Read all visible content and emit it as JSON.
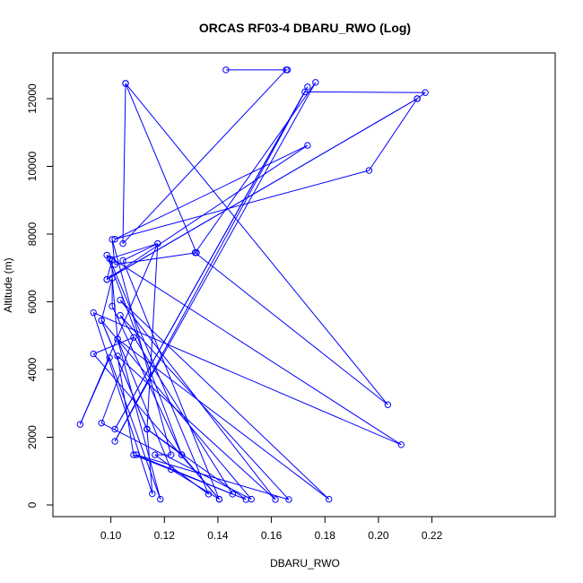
{
  "chart_data": {
    "type": "line",
    "title": "ORCAS RF03-4 DBARU_RWO (Log)",
    "xlabel": "DBARU_RWO",
    "ylabel": "Altitude (m)",
    "xlim": [
      0.085,
      0.22
    ],
    "ylim": [
      0,
      12900
    ],
    "x_ticks": [
      0.1,
      0.12,
      0.14,
      0.16,
      0.18,
      0.2,
      0.22
    ],
    "x_tick_labels": [
      "0.10",
      "0.12",
      "0.14",
      "0.16",
      "0.18",
      "0.20",
      "0.22"
    ],
    "y_ticks": [
      0,
      2000,
      4000,
      6000,
      8000,
      10000,
      12000
    ],
    "y_tick_labels": [
      "0",
      "2000",
      "4000",
      "6000",
      "8000",
      "10000",
      "12000"
    ],
    "grid": false,
    "legend": "none",
    "series": [
      {
        "color": "#0000ff",
        "marker": "open-circle",
        "points": [
          [
            0.143,
            12850
          ],
          [
            0.166,
            12850
          ],
          [
            0.1655,
            12850
          ],
          [
            0.1045,
            7720
          ],
          [
            0.1055,
            12450
          ],
          [
            0.132,
            7450
          ],
          [
            0.1015,
            7100
          ],
          [
            0.1005,
            7840
          ],
          [
            0.1225,
            1480
          ],
          [
            0.1165,
            1480
          ],
          [
            0.1365,
            320
          ],
          [
            0.0995,
            7270
          ],
          [
            0.1175,
            7720
          ],
          [
            0.1045,
            7220
          ],
          [
            0.1405,
            170
          ],
          [
            0.1225,
            1050
          ],
          [
            0.1025,
            4900
          ],
          [
            0.1815,
            170
          ],
          [
            0.1035,
            6050
          ],
          [
            0.1615,
            160
          ],
          [
            0.1025,
            4400
          ],
          [
            0.1085,
            1480
          ],
          [
            0.1455,
            320
          ],
          [
            0.1035,
            5600
          ],
          [
            0.1665,
            160
          ],
          [
            0.1095,
            1480
          ],
          [
            0.1505,
            160
          ],
          [
            0.1135,
            2240
          ],
          [
            0.1155,
            330
          ],
          [
            0.0935,
            5680
          ],
          [
            0.2085,
            1780
          ],
          [
            0.0985,
            7380
          ],
          [
            0.1265,
            1480
          ],
          [
            0.1005,
            5870
          ],
          [
            0.1005,
            6700
          ],
          [
            0.1025,
            4900
          ],
          [
            0.1185,
            170
          ],
          [
            0.0995,
            4350
          ],
          [
            0.0885,
            2380
          ],
          [
            0.1175,
            7720
          ],
          [
            0.1135,
            2240
          ],
          [
            0.0965,
            5450
          ],
          [
            0.1525,
            170
          ],
          [
            0.0965,
            2420
          ],
          [
            0.1085,
            4950
          ],
          [
            0.0935,
            4460
          ],
          [
            0.1405,
            170
          ],
          [
            0.1265,
            1480
          ],
          [
            0.1135,
            2240
          ],
          [
            0.0965,
            5450
          ],
          [
            0.1005,
            6700
          ],
          [
            0.1005,
            7240
          ],
          [
            0.0985,
            6660
          ],
          [
            0.1735,
            10620
          ],
          [
            0.1015,
            7850
          ],
          [
            0.1965,
            9880
          ],
          [
            0.2145,
            12000
          ],
          [
            0.0985,
            6660
          ],
          [
            0.2145,
            12000
          ],
          [
            0.2175,
            12180
          ],
          [
            0.1725,
            12200
          ],
          [
            0.1015,
            2240
          ],
          [
            0.1735,
            12350
          ],
          [
            0.1015,
            1880
          ],
          [
            0.1765,
            12480
          ],
          [
            0.1315,
            7450
          ],
          [
            0.2035,
            2960
          ],
          [
            0.1055,
            12450
          ]
        ]
      }
    ]
  }
}
